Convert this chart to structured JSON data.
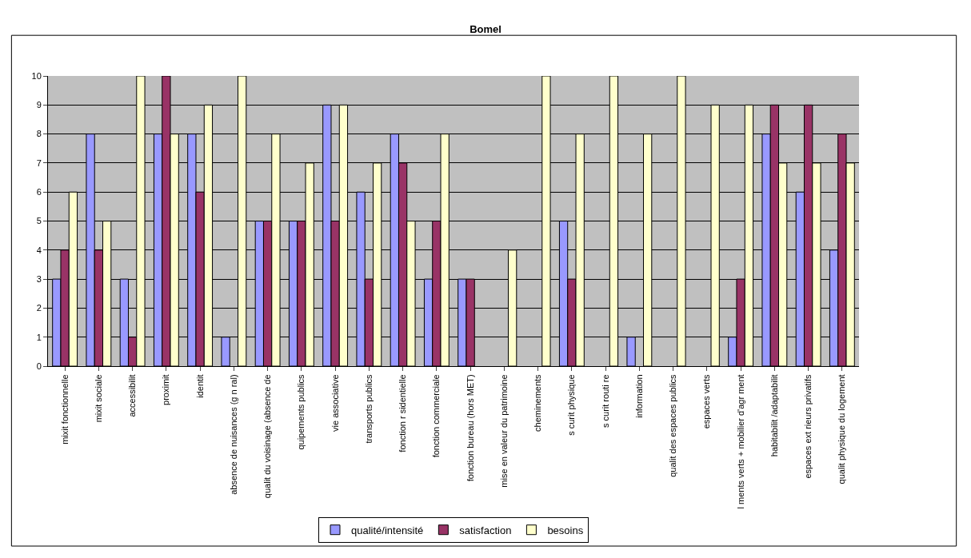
{
  "chart_data": {
    "type": "bar",
    "title": "Bomel",
    "categories": [
      "mixit fonctionnelle",
      "mixit sociale",
      "accessibilit",
      "proximit",
      "identit",
      "absence de nuisances (g n ral)",
      "qualit du voisinage (absence de",
      "quipements publics",
      "vie associative",
      "transports publics",
      "fonction r sidentielle",
      "fonction commerciale",
      "fonction bureau (hors MET)",
      "mise en valeur du patrimoine",
      "cheminements",
      "s curit physique",
      "s curit routi re",
      "information",
      "qualit des espaces publics",
      "espaces verts",
      "l ments verts + mobilier d'agr ment",
      "habitabilit /adaptabilit",
      "espaces ext rieurs privatifs",
      "qualit physique du logement"
    ],
    "series": [
      {
        "name": "qualité/intensité",
        "color": "#9999ff",
        "values": [
          3,
          8,
          3,
          8,
          8,
          1,
          5,
          5,
          9,
          6,
          8,
          3,
          3,
          null,
          null,
          5,
          null,
          1,
          null,
          null,
          1,
          8,
          6,
          4
        ]
      },
      {
        "name": "satisfaction",
        "color": "#993366",
        "values": [
          4,
          4,
          1,
          10,
          6,
          null,
          5,
          5,
          5,
          3,
          7,
          5,
          3,
          null,
          null,
          3,
          null,
          null,
          null,
          null,
          3,
          9,
          9,
          8
        ]
      },
      {
        "name": "besoins",
        "color": "#ffffcc",
        "values": [
          6,
          5,
          10,
          8,
          9,
          10,
          8,
          7,
          9,
          7,
          5,
          8,
          null,
          4,
          10,
          8,
          10,
          8,
          10,
          9,
          9,
          7,
          7,
          7
        ]
      }
    ],
    "ylim": [
      0,
      10
    ],
    "yticks": [
      0,
      1,
      2,
      3,
      4,
      5,
      6,
      7,
      8,
      9,
      10
    ],
    "grid": "y",
    "legend": "bottom"
  }
}
